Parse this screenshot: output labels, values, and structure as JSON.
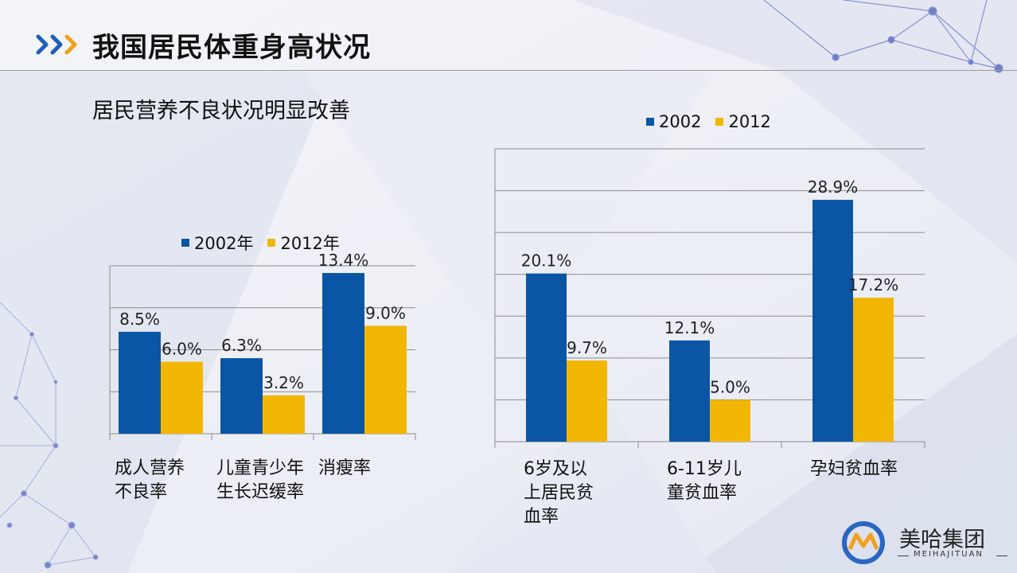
{
  "header": {
    "title": "我国居民体重身高状况",
    "subtitle": "居民营养不良状况明显改善"
  },
  "colors": {
    "series_a": "#0b56a4",
    "series_b": "#f2b705",
    "accent_blue": "#1f5fb8",
    "accent_orange": "#f0a21c"
  },
  "logo": {
    "name": "美哈集团",
    "sub": "MEIHAJITUAN"
  },
  "chart_data": [
    {
      "type": "bar",
      "categories": [
        "成人营养不良率",
        "儿童青少年生长迟缓率",
        "消瘦率"
      ],
      "category_lines": [
        [
          "成人营养",
          "不良率"
        ],
        [
          "儿童青少年",
          "生长迟缓率"
        ],
        [
          "消瘦率"
        ]
      ],
      "series": [
        {
          "name": "2002年",
          "values": [
            8.5,
            6.3,
            13.4
          ],
          "labels": [
            "8.5%",
            "6.3%",
            "13.4%"
          ]
        },
        {
          "name": "2012年",
          "values": [
            6.0,
            3.2,
            9.0
          ],
          "labels": [
            "6.0%",
            "3.2%",
            "9.0%"
          ]
        }
      ],
      "ylim": [
        0,
        14
      ],
      "grid": true,
      "legend": "top"
    },
    {
      "type": "bar",
      "categories": [
        "6岁及以上居民贫血率",
        "6-11岁儿童贫血率",
        "孕妇贫血率"
      ],
      "category_lines": [
        [
          "6岁及以",
          "上居民贫",
          "血率"
        ],
        [
          "6-11岁儿",
          "童贫血率"
        ],
        [
          "孕妇贫血率"
        ]
      ],
      "series": [
        {
          "name": "2002",
          "values": [
            20.1,
            12.1,
            28.9
          ],
          "labels": [
            "20.1%",
            "12.1%",
            "28.9%"
          ]
        },
        {
          "name": "2012",
          "values": [
            9.7,
            5.0,
            17.2
          ],
          "labels": [
            "9.7%",
            "5.0%",
            "17.2%"
          ]
        }
      ],
      "ylim": [
        0,
        35
      ],
      "grid": true,
      "legend": "top"
    }
  ]
}
